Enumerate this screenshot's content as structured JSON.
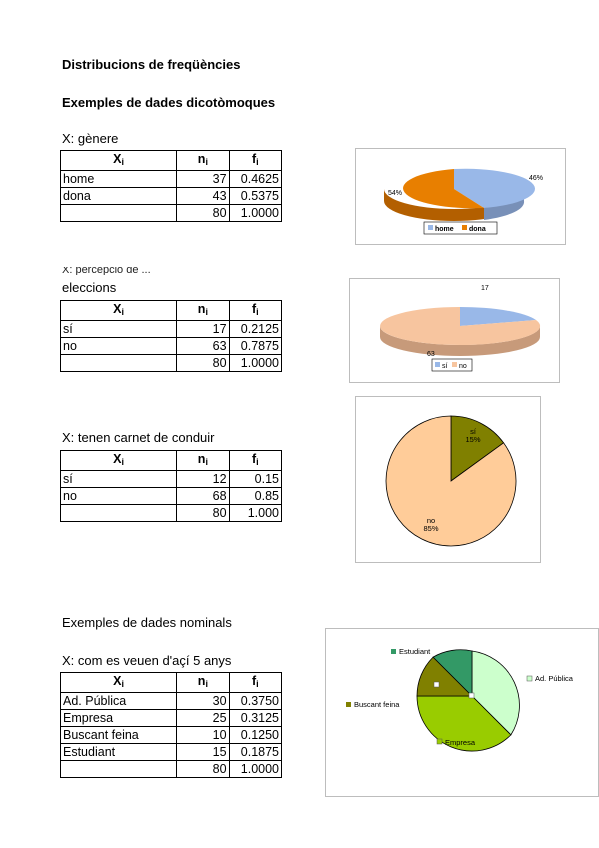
{
  "title": "Distribucions de freqüències",
  "section_dicotomiques": "Exemples de dades dicotòmoques",
  "section_nominals": "Exemples de dades nominals",
  "col_headers": {
    "x": "X",
    "x_sub": "i",
    "n": "n",
    "n_sub": "i",
    "f": "f",
    "f_sub": "i"
  },
  "tables": [
    {
      "label": "X: gènere",
      "rows": [
        {
          "x": "home",
          "n": "37",
          "f": "0.4625"
        },
        {
          "x": "dona",
          "n": "43",
          "f": "0.5375"
        },
        {
          "x": "",
          "n": "80",
          "f": "1.0000"
        }
      ]
    },
    {
      "label": "eleccions",
      "label_partial": "X: percepció de ...",
      "rows": [
        {
          "x": "sí",
          "n": "17",
          "f": "0.2125"
        },
        {
          "x": "no",
          "n": "63",
          "f": "0.7875"
        },
        {
          "x": "",
          "n": "80",
          "f": "1.0000"
        }
      ]
    },
    {
      "label": "X: tenen carnet de conduir",
      "rows": [
        {
          "x": "sí",
          "n": "12",
          "f": "0.15"
        },
        {
          "x": "no",
          "n": "68",
          "f": "0.85"
        },
        {
          "x": "",
          "n": "80",
          "f": "1.000"
        }
      ]
    },
    {
      "label": "X: com es veuen d'açí 5 anys",
      "rows": [
        {
          "x": "Ad. Pública",
          "n": "30",
          "f": "0.3750"
        },
        {
          "x": "Empresa",
          "n": "25",
          "f": "0.3125"
        },
        {
          "x": "Buscant feina",
          "n": "10",
          "f": "0.1250"
        },
        {
          "x": "Estudiant",
          "n": "15",
          "f": "0.1875"
        },
        {
          "x": "",
          "n": "80",
          "f": "1.0000"
        }
      ]
    }
  ],
  "chart_data": [
    {
      "type": "pie",
      "style": "3d",
      "categories": [
        "home",
        "dona"
      ],
      "values": [
        37,
        43
      ],
      "colors": [
        "#99b8e8",
        "#e87f00"
      ],
      "data_labels": [
        "46%",
        "54%"
      ],
      "legend": [
        "home",
        "dona"
      ],
      "legend_position": "bottom"
    },
    {
      "type": "pie",
      "style": "3d",
      "categories": [
        "sí",
        "no"
      ],
      "values": [
        17,
        63
      ],
      "colors": [
        "#99b8e8",
        "#f7c59f"
      ],
      "data_labels": [
        "17",
        "63"
      ],
      "legend": [
        "sí",
        "no"
      ],
      "legend_position": "bottom"
    },
    {
      "type": "pie",
      "categories": [
        "sí",
        "no"
      ],
      "values": [
        12,
        68
      ],
      "colors": [
        "#808000",
        "#ffcc99"
      ],
      "data_labels": [
        {
          "name": "sí",
          "pct": "15%"
        },
        {
          "name": "no",
          "pct": "85%"
        }
      ]
    },
    {
      "type": "pie",
      "categories": [
        "Ad. Pública",
        "Empresa",
        "Buscant feina",
        "Estudiant"
      ],
      "values": [
        30,
        25,
        10,
        15
      ],
      "colors": [
        "#ccffcc",
        "#99cc00",
        "#808000",
        "#339966"
      ],
      "data_labels": [
        "Ad. Pública",
        "Empresa",
        "Buscant feina",
        "Estudiant"
      ]
    }
  ]
}
